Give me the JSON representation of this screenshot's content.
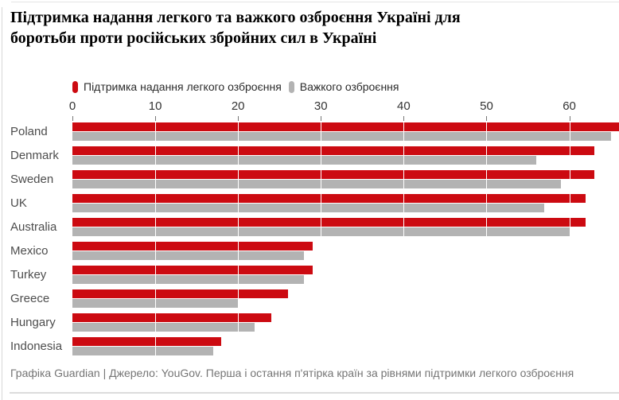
{
  "title": {
    "line1": "Підтримка надання легкого та важкого озброєння Україні для",
    "line2": "боротьби проти російських збройних сил в Україні"
  },
  "legend": {
    "light_label": "Підтримка надання легкого озброєння",
    "heavy_label": "Важкого озброєння"
  },
  "footer": "Графіка Guardian | Джерело: YouGov. Перша і остання п'ятірка країн за рівнями підтримки легкого озброєння",
  "colors": {
    "light_bar": "#cc0a11",
    "heavy_bar": "#b3b3b3",
    "gridline": "#ffffff",
    "tick": "#777777",
    "axis_text": "#333333",
    "country_text": "#4d4d4d",
    "footer_text": "#757575",
    "rule": "#dcdcdc"
  },
  "chart_data": {
    "type": "bar",
    "orientation": "horizontal",
    "title": "Підтримка надання легкого та важкого озброєння Україні для боротьби проти російських збройних сил в Україні",
    "categories": [
      "Poland",
      "Denmark",
      "Sweden",
      "UK",
      "Australia",
      "Mexico",
      "Turkey",
      "Greece",
      "Hungary",
      "Indonesia"
    ],
    "series": [
      {
        "name": "Підтримка надання легкого озброєння",
        "color": "#cc0a11",
        "values": [
          66,
          63,
          63,
          62,
          62,
          29,
          29,
          26,
          24,
          18
        ]
      },
      {
        "name": "Важкого озброєння",
        "color": "#b3b3b3",
        "values": [
          65,
          56,
          59,
          57,
          60,
          28,
          28,
          20,
          22,
          17
        ]
      }
    ],
    "xlabel": "",
    "ylabel": "",
    "xlim": [
      0,
      66
    ],
    "x_ticks": [
      0,
      10,
      20,
      30,
      40,
      50,
      60
    ],
    "grid": "vertical white gridlines over bars",
    "legend_position": "top-left above axis",
    "source_note": "Графіка Guardian | Джерело: YouGov. Перша і остання п'ятірка країн за рівнями підтримки легкого озброєння"
  }
}
